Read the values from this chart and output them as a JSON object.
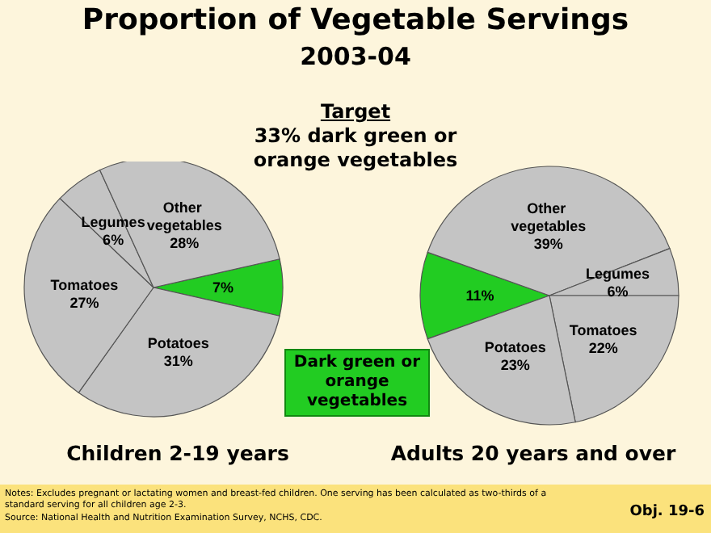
{
  "chart_data": [
    {
      "type": "pie",
      "title": "Proportion of Vegetable Servings",
      "subtitle": "2003-04",
      "xlabel": "Children 2-19 years",
      "categories": [
        null,
        "Potatoes",
        "Tomatoes",
        "Legumes",
        "Other vegetables"
      ],
      "values": [
        7,
        31,
        27,
        6,
        28
      ],
      "value_labels": [
        "7%",
        "31%",
        "27%",
        "6%",
        "28%"
      ],
      "colors": [
        "#22cc22",
        "#c4c4c4",
        "#c4c4c4",
        "#c4c4c4",
        "#c4c4c4"
      ],
      "annotations": [
        "Target",
        "33% dark green or orange vegetables",
        "Dark green or orange vegetables",
        "Notes: Excludes pregnant or lactating women and breast-fed children. One serving has been calculated as two-thirds of a standard serving for all children age 2-3.",
        "Source: National Health and Nutrition Examination Survey, NCHS, CDC.",
        "Obj. 19-6"
      ]
    },
    {
      "type": "pie",
      "xlabel": "Adults 20 years and over",
      "categories": [
        null,
        "Other vegetables",
        "Legumes",
        "Tomatoes",
        "Potatoes"
      ],
      "values": [
        11,
        39,
        6,
        22,
        23
      ],
      "value_labels": [
        "11%",
        "39%",
        "6%",
        "22%",
        "23%"
      ],
      "colors": [
        "#22cc22",
        "#c4c4c4",
        "#c4c4c4",
        "#c4c4c4",
        "#c4c4c4"
      ]
    }
  ]
}
